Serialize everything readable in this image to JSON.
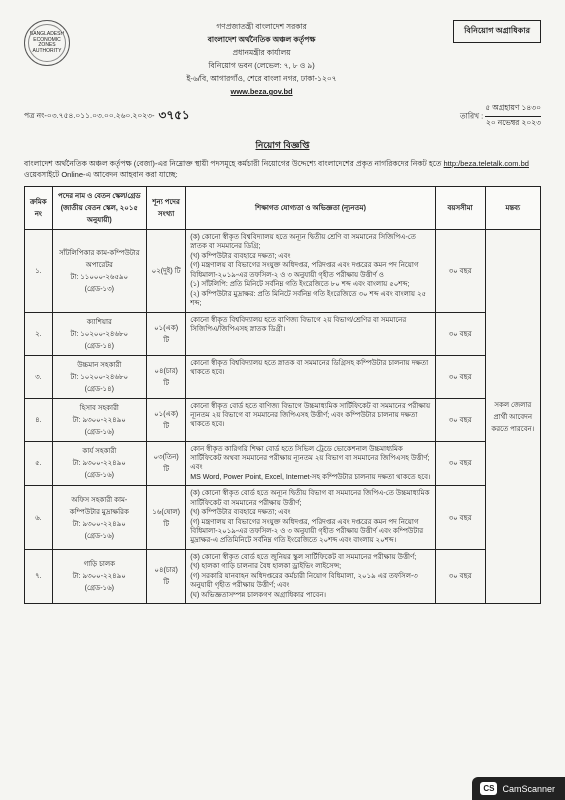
{
  "header": {
    "gov_line": "গণপ্রজাতন্ত্রী বাংলাদেশ সরকার",
    "org_bold": "বাংলাদেশ অর্থনৈতিক অঞ্চল কর্তৃপক্ষ",
    "office": "প্রধানমন্ত্রীর কার্যালয়",
    "address1": "বিনিয়োগ ভবন (লেভেল: ৭, ৮ ও ৯)",
    "address2": "ই-৬/বি, আগারগাঁও, শেরে বাংলা নগর, ঢাকা-১২০৭",
    "website": "www.beza.gov.bd",
    "authority_box": "বিনিয়োগ অগ্রাধিকার",
    "logo_text": "BANGLADESH ECONOMIC ZONES AUTHORITY"
  },
  "ref": {
    "label": "পত্র নং-০৩.৭৫৪.০১১.০৩.০০.২৬০.২০২৩-",
    "handwritten": "৩৭৫১",
    "date_label": "তারিখ :",
    "date1": "৫ অগ্রহায়ণ ১৪৩০",
    "date2": "২০ নভেম্বর ২০২৩"
  },
  "title": "নিয়োগ বিজ্ঞপ্তি",
  "intro_text": "বাংলাদেশ অর্থনৈতিক অঞ্চল কর্তৃপক্ষ (বেজা)-এর নিম্নোক্ত স্থায়ী পদসমূহে কর্মচারী নিয়োগের উদ্দেশ্যে বাংলাদেশের প্রকৃত নাগরিকদের নিকট হতে",
  "intro_link": "http:/beza.teletalk.com.bd",
  "intro_text2": " ওয়েবসাইটে Online-এ আবেদন আহবান করা যাচ্ছে:",
  "columns": {
    "sl": "ক্রমিক নং",
    "post": "পদের নাম ও বেতন স্কেল/গ্রেড (জাতীয় বেতন স্কেল, ২০১৫ অনুযায়ী)",
    "vacancy": "শূন্য পদের সংখ্যা",
    "qualification": "শিক্ষাগত যোগ্যতা ও অভিজ্ঞতা (ন্যূনতম)",
    "age": "বয়সসীমা",
    "remarks": "মন্তব্য"
  },
  "rows": [
    {
      "sl": "১.",
      "post": "সাঁটলিপিকার কাম-কম্পিউটার অপারেটর\nটা: ১১০০০-২৬৫৯০\n(গ্রেড-১৩)",
      "vacancy": "০২(দুই) টি",
      "qual": "(ক) কোনো স্বীকৃত বিশ্ববিদ্যালয় হতে অন্যূন দ্বিতীয় শ্রেণি বা সমমানের সিজিপিএ-তে স্নাতক বা সমমানের ডিগ্রি;\n(খ) কম্পিউটার ব্যবহারে দক্ষতা; এবং\n(গ) মন্ত্রণালয় বা বিভাগের সংযুক্ত অধিদপ্তর, পরিদপ্তর এবং দপ্তরের কমন পদ নিয়োগ বিধিমালা-২০১৯-এর তফসিল-২ ও ৩ অনুযায়ী গৃহীত পরীক্ষায় উত্তীর্ণ ও\n(১) সাঁটলিপি: প্রতি মিনিটে সর্বনিম্ন গতি ইংরেজিতে ৮০ শব্দ এবং বাংলায় ৫০শব্দ;\n(২) কম্পিউটার মুদ্রাক্ষর: প্রতি মিনিটে সর্বনিম্ন গতি ইংরেজিতে ৩০ শব্দ এবং বাংলায় ২৫ শব্দ;",
      "age": "৩০ বছর"
    },
    {
      "sl": "২.",
      "post": "ক্যাশিয়ার\nটা: ১০২০০-২৪৬৮০\n(গ্রেড-১৪)",
      "vacancy": "০১(এক) টি",
      "qual": "কোনো স্বীকৃত বিশ্ববিদ্যালয় হতে বাণিজ্য বিভাগে ২য় বিভাগ/শ্রেণির বা সমমানের সিজিপিএ/জিপিএসহ স্নাতক ডিগ্রী।",
      "age": "৩০ বছর"
    },
    {
      "sl": "৩.",
      "post": "উচ্চমান সহকারী\nটা: ১০২০০-২৪৬৮০\n(গ্রেড-১৪)",
      "vacancy": "০৪(চার) টি",
      "qual": "কোনো স্বীকৃত বিশ্ববিদ্যালয় হতে স্নাতক বা সমমানের ডিগ্রিসহ কম্পিউটার চালনায় দক্ষতা থাকতে হবে।",
      "age": "৩০ বছর"
    },
    {
      "sl": "৪.",
      "post": "হিসাব সহকারী\nটা: ৯৩০০-২২৪৯০\n(গ্রেড-১৬)",
      "vacancy": "০১(এক) টি",
      "qual": "কোনো স্বীকৃত বোর্ড হতে বাণিজ্য বিভাগে উচ্চমাধ্যমিক সার্টিফিকেট বা সমমানের পরীক্ষায় ন্যূনতম ২য় বিভাগে বা সমমানের জিপিএসহ উত্তীর্ণ; এবং কম্পিউটার চালনায় দক্ষতা থাকতে হবে।",
      "age": "৩০ বছর"
    },
    {
      "sl": "৫.",
      "post": "কার্য সহকারী\nটা: ৯৩০০-২২৪৯০\n(গ্রেড-১৬)",
      "vacancy": "০৩(তিন) টি",
      "qual": "কোন স্বীকৃত কারিগরি শিক্ষা বোর্ড হতে সিভিল ট্রেডে ভোকেশনাল উচ্চমাধ্যমিক সার্টিফিকেট অথবা সমমানের পরীক্ষায় ন্যূনতম ২য় বিভাগ বা সমমানের জিপিএসহ উত্তীর্ণ; এবং\nMS Word, Power Point, Excel, Internet-সহ কম্পিউটার চালনায় দক্ষতা থাকতে হবে।",
      "age": "৩০ বছর"
    },
    {
      "sl": "৬.",
      "post": "অফিস সহকারী কাম-কম্পিউটার মুদ্রাক্ষরিক\nটা: ৯৩০০-২২৪৯০\n(গ্রেড-১৬)",
      "vacancy": "১৬(ষোল) টি",
      "qual": "(ক) কোনো স্বীকৃত বোর্ড হতে অন্যূন দ্বিতীয় বিভাগ বা সমমানের জিপিএ-তে উচ্চমাধ্যমিক সার্টিফিকেট বা সমমানের পরীক্ষায় উত্তীর্ণ;\n(খ) কম্পিউটার ব্যবহারে দক্ষতা; এবং\n(গ) মন্ত্রণালয় বা বিভাগের সংযুক্ত অধিদপ্তর, পরিদপ্তর এবং দপ্তরের কমন পদ নিয়োগ বিধিমালা-২০১৯-এর তফসিল-২ ও ৩ অনুযায়ী গৃহীত পরীক্ষায় উত্তীর্ণ এবং কম্পিউটার মুদ্রাক্ষর-এ প্রতিমিনিটে সর্বনিম্ন গতি ইংরেজিতে ২০শব্দ এবং বাংলায় ২০শব্দ।",
      "age": "৩০ বছর"
    },
    {
      "sl": "৭.",
      "post": "গাড়ি চালক\nটা: ৯৩০০-২২৪৯০\n(গ্রেড-১৬)",
      "vacancy": "০৪(চার) টি",
      "qual": "(ক) কোনো স্বীকৃত বোর্ড হতে জুনিয়র স্কুল সার্টিফিকেট বা সমমানের পরীক্ষায় উত্তীর্ণ;\n(খ) হালকা গাড়ি চালনার বৈধ হালকা ড্রাইভিং লাইসেন্স;\n(গ) সরকারি যানবাহন অধিদপ্তরের কর্মচারী নিয়োগ বিধিমালা, ২০১৯ এর তফসিল-৩ অনুযায়ী গৃহীত পরীক্ষায় উত্তীর্ণ; এবং\n(ঘ) অভিজ্ঞতাসম্পন্ন চালকগণ অগ্রাধিকার পাবেন।",
      "age": "৩০ বছর"
    }
  ],
  "remarks_merged": "সকল জেলার প্রার্থী আবেদন করতে পারবেন।",
  "camscanner": {
    "badge": "CS",
    "label": "CamScanner"
  }
}
